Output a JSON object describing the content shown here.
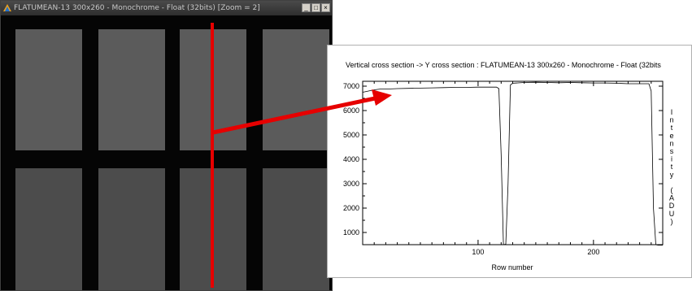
{
  "image_window": {
    "title": "FLATUMEAN-13 300x260 - Monochrome - Float (32bits)  [Zoom = 2]",
    "buttons": [
      "_",
      "□",
      "×"
    ]
  },
  "annotation": {
    "line_color": "#e60000",
    "arrow_color": "#e60000"
  },
  "chart_data": {
    "type": "line",
    "title": "Vertical cross section -> Y cross section : FLATUMEAN-13 300x260 - Monochrome - Float (32bits",
    "xlabel": "Row number",
    "ylabel_chars": [
      "I",
      "n",
      "t",
      "e",
      "n",
      "s",
      "i",
      "t",
      "y",
      " ",
      "(",
      "A",
      "D",
      "U",
      ")"
    ],
    "xlim": [
      0,
      260
    ],
    "ylim": [
      500,
      7200
    ],
    "x_ticks": [
      100,
      200
    ],
    "y_ticks": [
      1000,
      2000,
      3000,
      4000,
      5000,
      6000,
      7000
    ],
    "series": [
      {
        "color": "#000000",
        "x": [
          0,
          5,
          10,
          15,
          20,
          30,
          40,
          50,
          60,
          70,
          80,
          90,
          100,
          110,
          116,
          118,
          120,
          122,
          124,
          126,
          128,
          130,
          140,
          150,
          160,
          170,
          180,
          190,
          200,
          210,
          220,
          230,
          240,
          248,
          250,
          252,
          254,
          256,
          258,
          260
        ],
        "y": [
          6750,
          6800,
          6850,
          6880,
          6880,
          6900,
          6910,
          6920,
          6930,
          6940,
          6950,
          6950,
          6960,
          6960,
          6960,
          6900,
          4200,
          500,
          520,
          3000,
          7050,
          7120,
          7150,
          7160,
          7150,
          7140,
          7150,
          7140,
          7130,
          7130,
          7120,
          7100,
          7100,
          7100,
          6800,
          2000,
          500,
          480,
          480,
          480
        ]
      }
    ]
  }
}
